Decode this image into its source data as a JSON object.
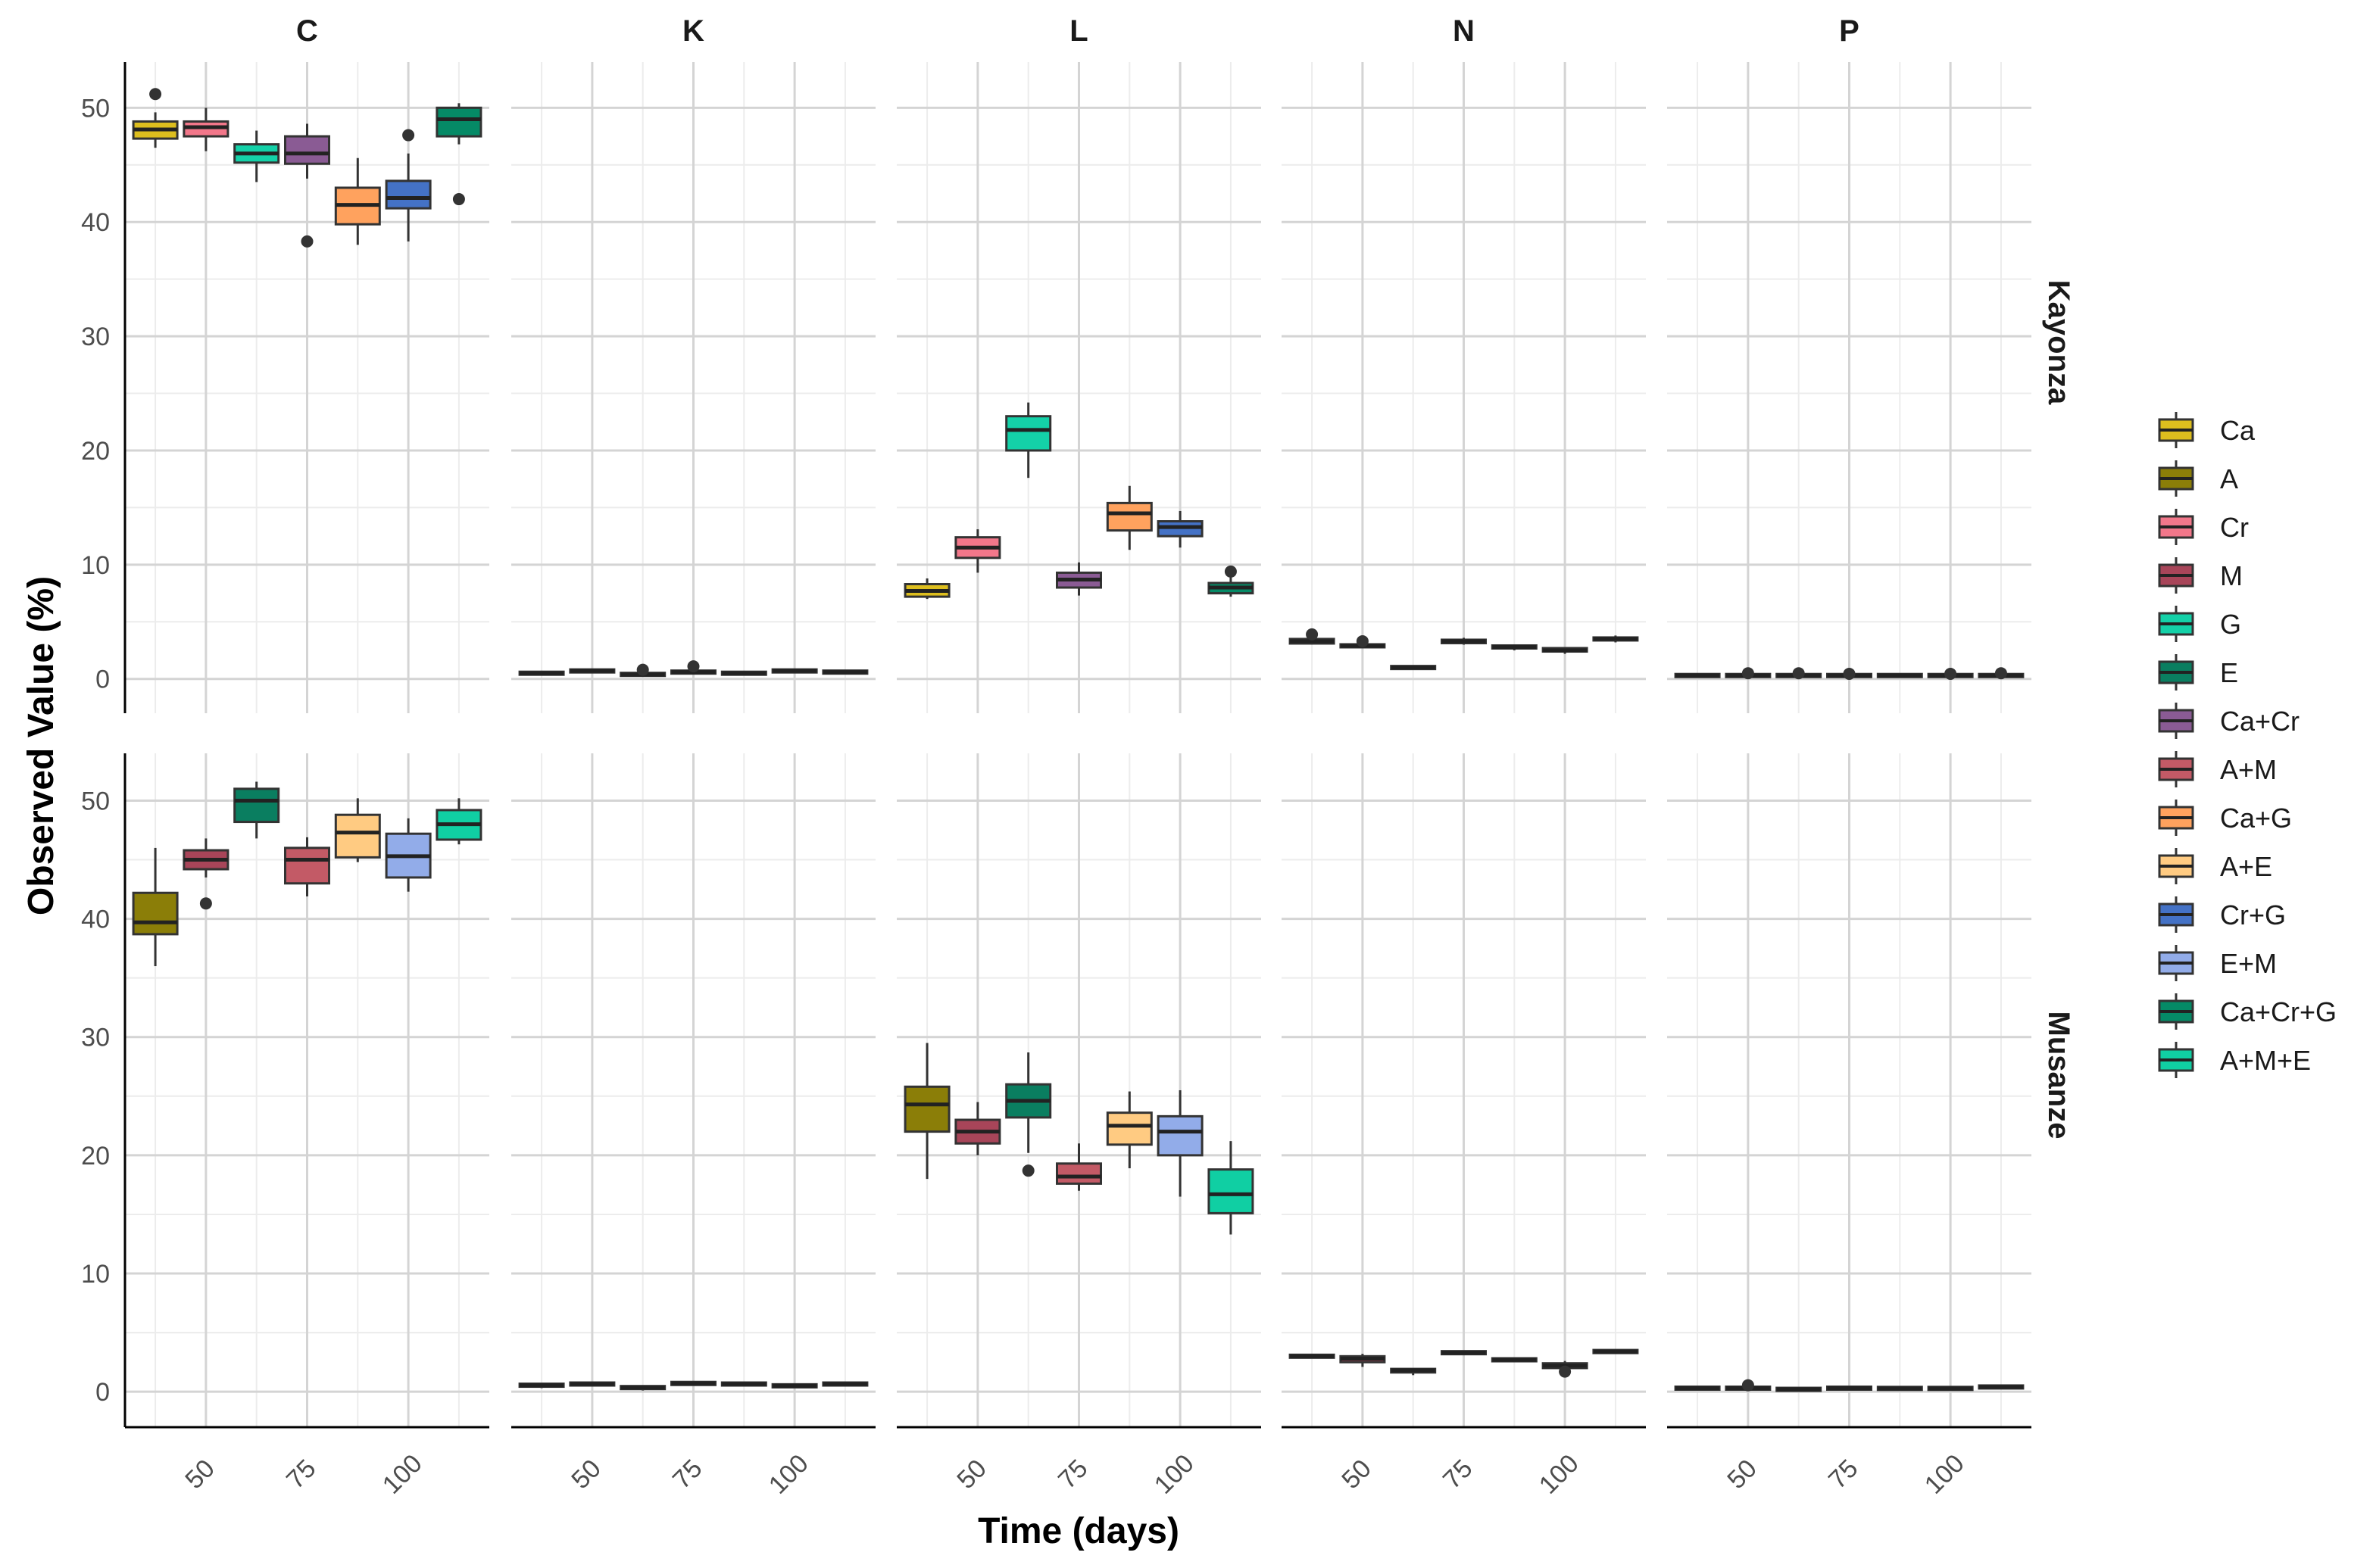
{
  "chart_data": {
    "type": "box",
    "xlabel": "Time (days)",
    "ylabel": "Observed Value (%)",
    "facet_columns": [
      "C",
      "K",
      "L",
      "N",
      "P"
    ],
    "facet_rows": [
      "Kayonza",
      "Musanze"
    ],
    "x_ticks": [
      50,
      75,
      100
    ],
    "x_range": [
      30,
      120
    ],
    "y_ticks": [
      0,
      10,
      20,
      30,
      40,
      50
    ],
    "y_range": [
      -3,
      54
    ],
    "grid": true,
    "legend_position": "right",
    "legend": [
      {
        "name": "Ca",
        "color": "#DDBE1E"
      },
      {
        "name": "A",
        "color": "#8B7E08"
      },
      {
        "name": "Cr",
        "color": "#F2778A"
      },
      {
        "name": "M",
        "color": "#A84559"
      },
      {
        "name": "G",
        "color": "#14D1A8"
      },
      {
        "name": "E",
        "color": "#0A7E60"
      },
      {
        "name": "Ca+Cr",
        "color": "#8A5B94"
      },
      {
        "name": "A+M",
        "color": "#C35A66"
      },
      {
        "name": "Ca+G",
        "color": "#FFA25E"
      },
      {
        "name": "A+E",
        "color": "#FFCB82"
      },
      {
        "name": "Cr+G",
        "color": "#4472C6"
      },
      {
        "name": "E+M",
        "color": "#92ACE9"
      },
      {
        "name": "Ca+Cr+G",
        "color": "#058A66"
      },
      {
        "name": "A+M+E",
        "color": "#10CFA3"
      }
    ],
    "panels": [
      {
        "row": "Kayonza",
        "col": "C",
        "boxes": [
          {
            "x": 37.5,
            "treatment": "Ca",
            "min": 46.5,
            "q1": 47.3,
            "median": 48.1,
            "q3": 48.8,
            "max": 49.6,
            "outliers": [
              51.2
            ]
          },
          {
            "x": 50,
            "treatment": "Cr",
            "min": 46.2,
            "q1": 47.5,
            "median": 48.3,
            "q3": 48.8,
            "max": 50.0,
            "outliers": []
          },
          {
            "x": 62.5,
            "treatment": "G",
            "min": 43.5,
            "q1": 45.2,
            "median": 46.0,
            "q3": 46.8,
            "max": 48.0,
            "outliers": []
          },
          {
            "x": 75,
            "treatment": "Ca+Cr",
            "min": 43.8,
            "q1": 45.1,
            "median": 46.0,
            "q3": 47.5,
            "max": 48.6,
            "outliers": [
              38.3
            ]
          },
          {
            "x": 87.5,
            "treatment": "Ca+G",
            "min": 38.0,
            "q1": 39.8,
            "median": 41.5,
            "q3": 43.0,
            "max": 45.6,
            "outliers": []
          },
          {
            "x": 100,
            "treatment": "Cr+G",
            "min": 38.3,
            "q1": 41.2,
            "median": 42.1,
            "q3": 43.6,
            "max": 46.0,
            "outliers": [
              47.6
            ]
          },
          {
            "x": 112.5,
            "treatment": "Ca+Cr+G",
            "min": 46.8,
            "q1": 47.5,
            "median": 49.0,
            "q3": 50.0,
            "max": 50.4,
            "outliers": [
              42.0
            ]
          }
        ]
      },
      {
        "row": "Kayonza",
        "col": "K",
        "boxes": [
          {
            "x": 37.5,
            "treatment": "Ca",
            "min": 0.3,
            "q1": 0.4,
            "median": 0.5,
            "q3": 0.6,
            "max": 0.7,
            "outliers": []
          },
          {
            "x": 50,
            "treatment": "Cr",
            "min": 0.5,
            "q1": 0.6,
            "median": 0.7,
            "q3": 0.8,
            "max": 0.9,
            "outliers": []
          },
          {
            "x": 62.5,
            "treatment": "G",
            "min": 0.2,
            "q1": 0.3,
            "median": 0.4,
            "q3": 0.5,
            "max": 0.6,
            "outliers": [
              0.8
            ]
          },
          {
            "x": 75,
            "treatment": "Ca+Cr",
            "min": 0.4,
            "q1": 0.5,
            "median": 0.6,
            "q3": 0.7,
            "max": 0.8,
            "outliers": [
              1.1
            ]
          },
          {
            "x": 87.5,
            "treatment": "Ca+G",
            "min": 0.3,
            "q1": 0.4,
            "median": 0.5,
            "q3": 0.6,
            "max": 0.7,
            "outliers": []
          },
          {
            "x": 100,
            "treatment": "Cr+G",
            "min": 0.5,
            "q1": 0.6,
            "median": 0.7,
            "q3": 0.8,
            "max": 0.9,
            "outliers": []
          },
          {
            "x": 112.5,
            "treatment": "Ca+Cr+G",
            "min": 0.4,
            "q1": 0.5,
            "median": 0.6,
            "q3": 0.7,
            "max": 0.8,
            "outliers": []
          }
        ]
      },
      {
        "row": "Kayonza",
        "col": "L",
        "boxes": [
          {
            "x": 37.5,
            "treatment": "Ca",
            "min": 7.0,
            "q1": 7.2,
            "median": 7.7,
            "q3": 8.3,
            "max": 8.8,
            "outliers": []
          },
          {
            "x": 50,
            "treatment": "Cr",
            "min": 9.3,
            "q1": 10.6,
            "median": 11.5,
            "q3": 12.4,
            "max": 13.1,
            "outliers": []
          },
          {
            "x": 62.5,
            "treatment": "G",
            "min": 17.6,
            "q1": 20.0,
            "median": 21.8,
            "q3": 23.0,
            "max": 24.2,
            "outliers": []
          },
          {
            "x": 75,
            "treatment": "Ca+Cr",
            "min": 7.3,
            "q1": 8.0,
            "median": 8.7,
            "q3": 9.3,
            "max": 10.2,
            "outliers": []
          },
          {
            "x": 87.5,
            "treatment": "Ca+G",
            "min": 11.3,
            "q1": 13.0,
            "median": 14.5,
            "q3": 15.4,
            "max": 16.9,
            "outliers": []
          },
          {
            "x": 100,
            "treatment": "Cr+G",
            "min": 11.5,
            "q1": 12.5,
            "median": 13.3,
            "q3": 13.8,
            "max": 14.7,
            "outliers": []
          },
          {
            "x": 112.5,
            "treatment": "Ca+Cr+G",
            "min": 7.2,
            "q1": 7.5,
            "median": 8.0,
            "q3": 8.4,
            "max": 8.9,
            "outliers": [
              9.4
            ]
          }
        ]
      },
      {
        "row": "Kayonza",
        "col": "N",
        "boxes": [
          {
            "x": 37.5,
            "treatment": "Ca",
            "min": 3.0,
            "q1": 3.1,
            "median": 3.3,
            "q3": 3.5,
            "max": 3.6,
            "outliers": [
              3.9
            ]
          },
          {
            "x": 50,
            "treatment": "Cr",
            "min": 2.7,
            "q1": 2.8,
            "median": 2.9,
            "q3": 3.0,
            "max": 3.2,
            "outliers": [
              3.3
            ]
          },
          {
            "x": 62.5,
            "treatment": "G",
            "min": 0.8,
            "q1": 0.9,
            "median": 1.0,
            "q3": 1.1,
            "max": 1.2,
            "outliers": []
          },
          {
            "x": 75,
            "treatment": "Ca+Cr",
            "min": 3.0,
            "q1": 3.1,
            "median": 3.3,
            "q3": 3.4,
            "max": 3.6,
            "outliers": []
          },
          {
            "x": 87.5,
            "treatment": "Ca+G",
            "min": 2.5,
            "q1": 2.7,
            "median": 2.8,
            "q3": 2.9,
            "max": 3.0,
            "outliers": []
          },
          {
            "x": 100,
            "treatment": "Cr+G",
            "min": 2.2,
            "q1": 2.4,
            "median": 2.5,
            "q3": 2.7,
            "max": 2.8,
            "outliers": []
          },
          {
            "x": 112.5,
            "treatment": "Ca+Cr+G",
            "min": 3.2,
            "q1": 3.4,
            "median": 3.5,
            "q3": 3.6,
            "max": 3.8,
            "outliers": []
          }
        ]
      },
      {
        "row": "Kayonza",
        "col": "P",
        "boxes": [
          {
            "x": 37.5,
            "treatment": "Ca",
            "min": 0.2,
            "q1": 0.25,
            "median": 0.3,
            "q3": 0.35,
            "max": 0.4,
            "outliers": []
          },
          {
            "x": 50,
            "treatment": "Cr",
            "min": 0.2,
            "q1": 0.25,
            "median": 0.3,
            "q3": 0.35,
            "max": 0.4,
            "outliers": [
              0.5
            ]
          },
          {
            "x": 62.5,
            "treatment": "G",
            "min": 0.2,
            "q1": 0.25,
            "median": 0.3,
            "q3": 0.35,
            "max": 0.4,
            "outliers": [
              0.5
            ]
          },
          {
            "x": 75,
            "treatment": "Ca+Cr",
            "min": 0.2,
            "q1": 0.25,
            "median": 0.3,
            "q3": 0.35,
            "max": 0.4,
            "outliers": [
              0.45
            ]
          },
          {
            "x": 87.5,
            "treatment": "Ca+G",
            "min": 0.2,
            "q1": 0.25,
            "median": 0.3,
            "q3": 0.35,
            "max": 0.4,
            "outliers": []
          },
          {
            "x": 100,
            "treatment": "Cr+G",
            "min": 0.2,
            "q1": 0.25,
            "median": 0.3,
            "q3": 0.35,
            "max": 0.4,
            "outliers": [
              0.45
            ]
          },
          {
            "x": 112.5,
            "treatment": "Ca+Cr+G",
            "min": 0.2,
            "q1": 0.25,
            "median": 0.3,
            "q3": 0.35,
            "max": 0.4,
            "outliers": [
              0.5
            ]
          }
        ]
      },
      {
        "row": "Musanze",
        "col": "C",
        "boxes": [
          {
            "x": 37.5,
            "treatment": "A",
            "min": 36.0,
            "q1": 38.7,
            "median": 39.7,
            "q3": 42.2,
            "max": 46.0,
            "outliers": []
          },
          {
            "x": 50,
            "treatment": "M",
            "min": 43.5,
            "q1": 44.2,
            "median": 45.0,
            "q3": 45.8,
            "max": 46.8,
            "outliers": [
              41.3
            ]
          },
          {
            "x": 62.5,
            "treatment": "E",
            "min": 46.8,
            "q1": 48.2,
            "median": 50.0,
            "q3": 51.0,
            "max": 51.6,
            "outliers": []
          },
          {
            "x": 75,
            "treatment": "A+M",
            "min": 41.9,
            "q1": 43.0,
            "median": 45.0,
            "q3": 46.0,
            "max": 46.9,
            "outliers": []
          },
          {
            "x": 87.5,
            "treatment": "A+E",
            "min": 44.8,
            "q1": 45.2,
            "median": 47.3,
            "q3": 48.8,
            "max": 50.2,
            "outliers": []
          },
          {
            "x": 100,
            "treatment": "E+M",
            "min": 42.3,
            "q1": 43.5,
            "median": 45.3,
            "q3": 47.2,
            "max": 48.5,
            "outliers": []
          },
          {
            "x": 112.5,
            "treatment": "A+M+E",
            "min": 46.3,
            "q1": 46.7,
            "median": 48.0,
            "q3": 49.2,
            "max": 50.2,
            "outliers": []
          }
        ]
      },
      {
        "row": "Musanze",
        "col": "K",
        "boxes": [
          {
            "x": 37.5,
            "treatment": "A",
            "min": 0.3,
            "q1": 0.45,
            "median": 0.55,
            "q3": 0.65,
            "max": 0.75,
            "outliers": []
          },
          {
            "x": 50,
            "treatment": "M",
            "min": 0.45,
            "q1": 0.55,
            "median": 0.65,
            "q3": 0.75,
            "max": 0.85,
            "outliers": []
          },
          {
            "x": 62.5,
            "treatment": "E",
            "min": 0.1,
            "q1": 0.25,
            "median": 0.35,
            "q3": 0.45,
            "max": 0.55,
            "outliers": []
          },
          {
            "x": 75,
            "treatment": "A+M",
            "min": 0.5,
            "q1": 0.6,
            "median": 0.7,
            "q3": 0.8,
            "max": 0.9,
            "outliers": []
          },
          {
            "x": 87.5,
            "treatment": "A+E",
            "min": 0.45,
            "q1": 0.55,
            "median": 0.65,
            "q3": 0.7,
            "max": 0.8,
            "outliers": []
          },
          {
            "x": 100,
            "treatment": "E+M",
            "min": 0.3,
            "q1": 0.4,
            "median": 0.5,
            "q3": 0.6,
            "max": 0.7,
            "outliers": []
          },
          {
            "x": 112.5,
            "treatment": "A+M+E",
            "min": 0.45,
            "q1": 0.55,
            "median": 0.65,
            "q3": 0.7,
            "max": 0.8,
            "outliers": []
          }
        ]
      },
      {
        "row": "Musanze",
        "col": "L",
        "boxes": [
          {
            "x": 37.5,
            "treatment": "A",
            "min": 18.0,
            "q1": 22.0,
            "median": 24.3,
            "q3": 25.8,
            "max": 29.5,
            "outliers": []
          },
          {
            "x": 50,
            "treatment": "M",
            "min": 20.0,
            "q1": 21.0,
            "median": 22.0,
            "q3": 23.0,
            "max": 24.5,
            "outliers": []
          },
          {
            "x": 62.5,
            "treatment": "E",
            "min": 20.2,
            "q1": 23.2,
            "median": 24.6,
            "q3": 26.0,
            "max": 28.7,
            "outliers": [
              18.7
            ]
          },
          {
            "x": 75,
            "treatment": "A+M",
            "min": 17.0,
            "q1": 17.6,
            "median": 18.2,
            "q3": 19.3,
            "max": 21.0,
            "outliers": []
          },
          {
            "x": 87.5,
            "treatment": "A+E",
            "min": 18.9,
            "q1": 20.9,
            "median": 22.5,
            "q3": 23.6,
            "max": 25.4,
            "outliers": []
          },
          {
            "x": 100,
            "treatment": "E+M",
            "min": 16.5,
            "q1": 20.0,
            "median": 22.0,
            "q3": 23.3,
            "max": 25.5,
            "outliers": []
          },
          {
            "x": 112.5,
            "treatment": "A+M+E",
            "min": 13.3,
            "q1": 15.1,
            "median": 16.7,
            "q3": 18.8,
            "max": 21.2,
            "outliers": []
          }
        ]
      },
      {
        "row": "Musanze",
        "col": "N",
        "boxes": [
          {
            "x": 37.5,
            "treatment": "A",
            "min": 2.8,
            "q1": 2.9,
            "median": 3.0,
            "q3": 3.1,
            "max": 3.2,
            "outliers": []
          },
          {
            "x": 50,
            "treatment": "M",
            "min": 2.1,
            "q1": 2.5,
            "median": 2.8,
            "q3": 3.0,
            "max": 3.2,
            "outliers": []
          },
          {
            "x": 62.5,
            "treatment": "E",
            "min": 1.4,
            "q1": 1.6,
            "median": 1.8,
            "q3": 1.9,
            "max": 2.0,
            "outliers": []
          },
          {
            "x": 75,
            "treatment": "A+M",
            "min": 3.1,
            "q1": 3.2,
            "median": 3.3,
            "q3": 3.4,
            "max": 3.5,
            "outliers": []
          },
          {
            "x": 87.5,
            "treatment": "A+E",
            "min": 2.5,
            "q1": 2.6,
            "median": 2.7,
            "q3": 2.8,
            "max": 2.9,
            "outliers": []
          },
          {
            "x": 100,
            "treatment": "E+M",
            "min": 1.9,
            "q1": 2.0,
            "median": 2.2,
            "q3": 2.4,
            "max": 2.6,
            "outliers": [
              1.7
            ]
          },
          {
            "x": 112.5,
            "treatment": "A+M+E",
            "min": 3.2,
            "q1": 3.3,
            "median": 3.4,
            "q3": 3.5,
            "max": 3.6,
            "outliers": []
          }
        ]
      },
      {
        "row": "Musanze",
        "col": "P",
        "boxes": [
          {
            "x": 37.5,
            "treatment": "A",
            "min": 0.2,
            "q1": 0.25,
            "median": 0.3,
            "q3": 0.35,
            "max": 0.4,
            "outliers": []
          },
          {
            "x": 50,
            "treatment": "M",
            "min": 0.2,
            "q1": 0.25,
            "median": 0.3,
            "q3": 0.38,
            "max": 0.45,
            "outliers": [
              0.55
            ]
          },
          {
            "x": 62.5,
            "treatment": "E",
            "min": 0.1,
            "q1": 0.15,
            "median": 0.2,
            "q3": 0.25,
            "max": 0.3,
            "outliers": []
          },
          {
            "x": 75,
            "treatment": "A+M",
            "min": 0.2,
            "q1": 0.25,
            "median": 0.3,
            "q3": 0.35,
            "max": 0.4,
            "outliers": []
          },
          {
            "x": 87.5,
            "treatment": "A+E",
            "min": 0.2,
            "q1": 0.25,
            "median": 0.28,
            "q3": 0.32,
            "max": 0.36,
            "outliers": []
          },
          {
            "x": 100,
            "treatment": "E+M",
            "min": 0.2,
            "q1": 0.25,
            "median": 0.28,
            "q3": 0.32,
            "max": 0.36,
            "outliers": []
          },
          {
            "x": 112.5,
            "treatment": "A+M+E",
            "min": 0.3,
            "q1": 0.35,
            "median": 0.4,
            "q3": 0.45,
            "max": 0.5,
            "outliers": []
          }
        ]
      }
    ]
  }
}
